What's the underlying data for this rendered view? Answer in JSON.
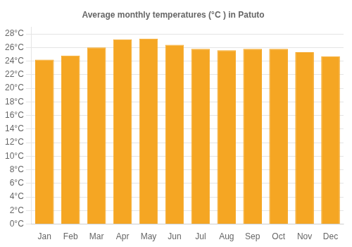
{
  "chart_data": {
    "type": "bar",
    "title": "Average monthly temperatures (°C ) in Patuto",
    "categories": [
      "Jan",
      "Feb",
      "Mar",
      "Apr",
      "May",
      "Jun",
      "Jul",
      "Aug",
      "Sep",
      "Oct",
      "Nov",
      "Dec"
    ],
    "values": [
      24.2,
      24.8,
      26.0,
      27.2,
      27.3,
      26.4,
      25.8,
      25.6,
      25.8,
      25.8,
      25.3,
      24.7
    ],
    "color": "#F5A623",
    "ylim": [
      0,
      29
    ],
    "yticks": [
      {
        "value": 0,
        "label": "0°C"
      },
      {
        "value": 2,
        "label": "2°C"
      },
      {
        "value": 4,
        "label": "4°C"
      },
      {
        "value": 6,
        "label": "6°C"
      },
      {
        "value": 8,
        "label": "8°C"
      },
      {
        "value": 10,
        "label": "10°C"
      },
      {
        "value": 12,
        "label": "12°C"
      },
      {
        "value": 14,
        "label": "14°C"
      },
      {
        "value": 16,
        "label": "16°C"
      },
      {
        "value": 18,
        "label": "18°C"
      },
      {
        "value": 20,
        "label": "20°C"
      },
      {
        "value": 22,
        "label": "22°C"
      },
      {
        "value": 24,
        "label": "24°C"
      },
      {
        "value": 26,
        "label": "26°C"
      },
      {
        "value": 28,
        "label": "28°C"
      }
    ],
    "grid": true
  }
}
